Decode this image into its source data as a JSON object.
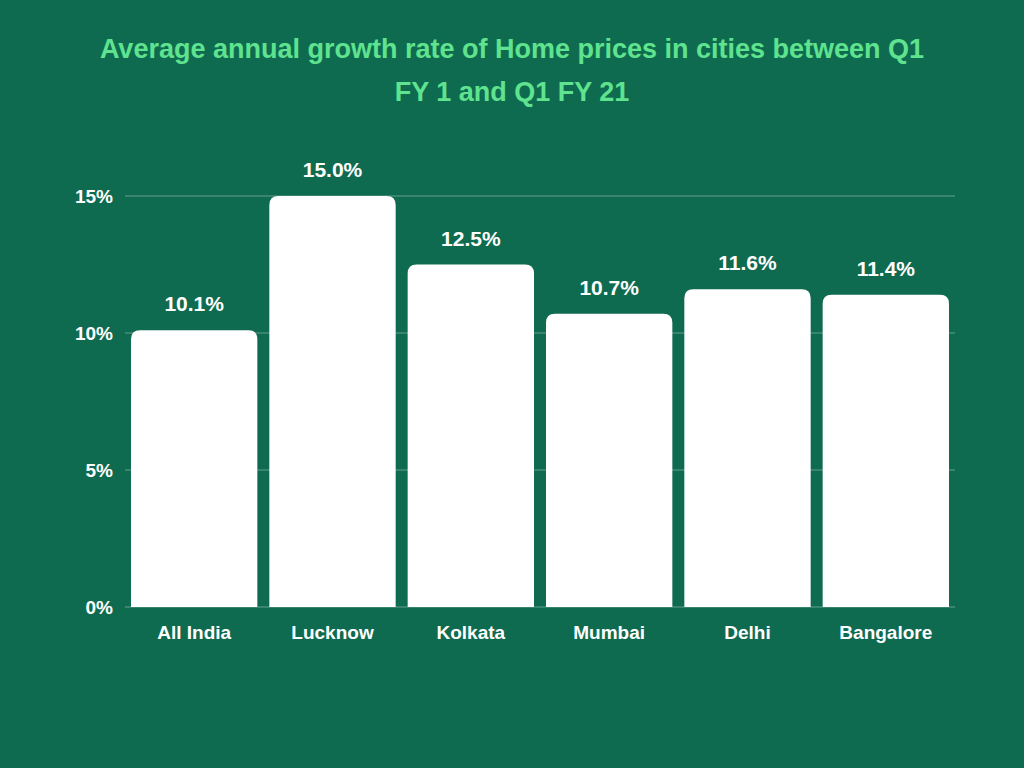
{
  "chart_data": {
    "type": "bar",
    "title": "Average annual growth rate of Home prices in cities between Q1 FY 1 and Q1 FY 21",
    "categories": [
      "All India",
      "Lucknow",
      "Kolkata",
      "Mumbai",
      "Delhi",
      "Bangalore"
    ],
    "values": [
      10.1,
      15.0,
      12.5,
      10.7,
      11.6,
      11.4
    ],
    "value_labels": [
      "10.1%",
      "15.0%",
      "12.5%",
      "10.7%",
      "11.6%",
      "11.4%"
    ],
    "color": "#ffffff",
    "ylim": [
      0,
      15
    ],
    "yticks": [
      {
        "value": 0,
        "label": "0%"
      },
      {
        "value": 5,
        "label": "5%"
      },
      {
        "value": 10,
        "label": "10%"
      },
      {
        "value": 15,
        "label": "15%"
      }
    ],
    "grid": true,
    "data_labels": true
  }
}
